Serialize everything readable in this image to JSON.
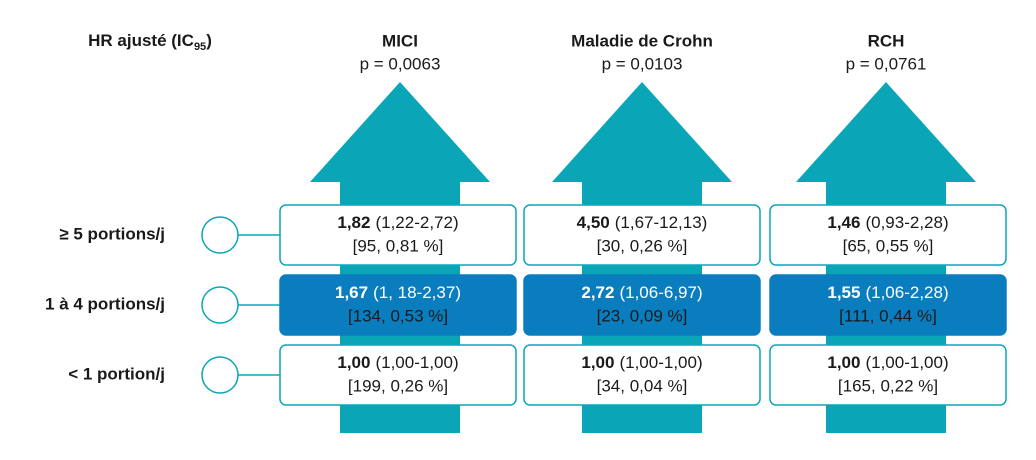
{
  "header": {
    "title": "HR ajusté (IC",
    "subscript": "95",
    "title_end": ")"
  },
  "columns": [
    {
      "title": "MICI",
      "p": "p = 0,0063"
    },
    {
      "title": "Maladie de Crohn",
      "p": "p = 0,0103"
    },
    {
      "title": "RCH",
      "p": "p = 0,0761"
    }
  ],
  "rows": [
    {
      "label": "≥ 5 portions/j",
      "cells": [
        {
          "hr": "1,82",
          "ci": "(1,22-2,72)",
          "n": "[95, 0,81 %]"
        },
        {
          "hr": "4,50",
          "ci": "(1,67-12,13)",
          "n": "[30, 0,26 %]"
        },
        {
          "hr": "1,46",
          "ci": "(0,93-2,28)",
          "n": "[65, 0,55 %]"
        }
      ]
    },
    {
      "label": "1 à 4 portions/j",
      "cells": [
        {
          "hr": "1,67",
          "ci": "(1, 18-2,37)",
          "n": "[134, 0,53 %]"
        },
        {
          "hr": "2,72",
          "ci": "(1,06-6,97)",
          "n": "[23, 0,09 %]"
        },
        {
          "hr": "1,55",
          "ci": "(1,06-2,28)",
          "n": "[111, 0,44 %]"
        }
      ]
    },
    {
      "label": "< 1 portion/j",
      "cells": [
        {
          "hr": "1,00",
          "ci": "(1,00-1,00)",
          "n": "[199, 0,26 %]"
        },
        {
          "hr": "1,00",
          "ci": "(1,00-1,00)",
          "n": "[34, 0,04 %]"
        },
        {
          "hr": "1,00",
          "ci": "(1,00-1,00)",
          "n": "[165, 0,22 %]"
        }
      ]
    }
  ]
}
